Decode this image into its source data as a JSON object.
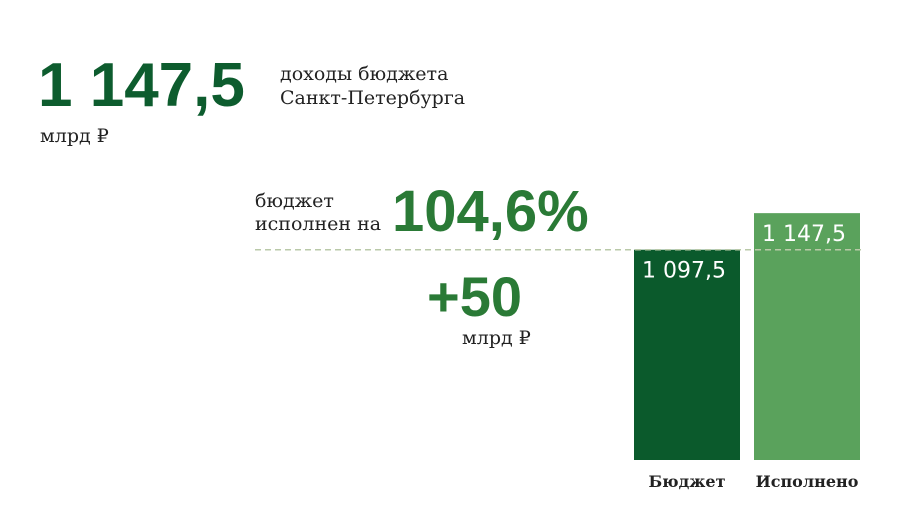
{
  "headline": {
    "value": "1 147,5",
    "description": [
      "доходы бюджета",
      "Санкт-Петербурга"
    ],
    "unit": "млрд ₽"
  },
  "execution": {
    "label": [
      "бюджет",
      "исполнен на"
    ],
    "percent": "104,6%",
    "delta": "+50",
    "delta_unit": "млрд ₽"
  },
  "chart_data": {
    "type": "bar",
    "categories": [
      "Бюджет",
      "Исполнено"
    ],
    "series": [
      {
        "values": [
          1097.5,
          1147.5
        ],
        "value_labels": [
          "1 097,5",
          "1 147,5"
        ],
        "colors": [
          "#0b5a2c",
          "#5aa25c"
        ]
      }
    ],
    "ylim": [
      810,
      1160
    ]
  }
}
